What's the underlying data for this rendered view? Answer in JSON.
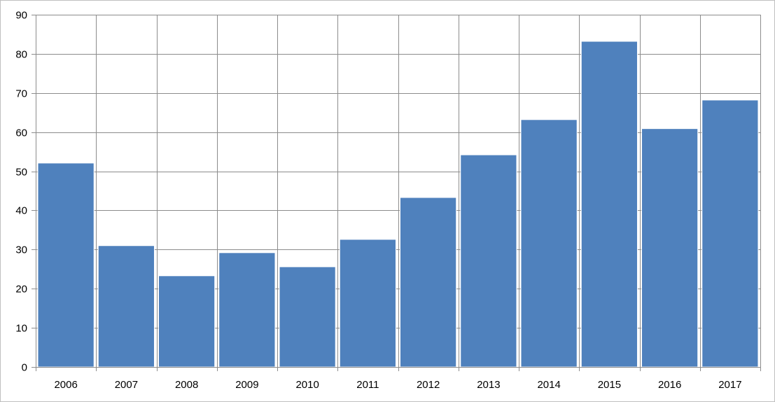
{
  "chart_data": {
    "type": "bar",
    "categories": [
      "2006",
      "2007",
      "2008",
      "2009",
      "2010",
      "2011",
      "2012",
      "2013",
      "2014",
      "2015",
      "2016",
      "2017"
    ],
    "values": [
      52.1,
      31.0,
      23.3,
      29.2,
      25.6,
      32.6,
      43.3,
      54.2,
      63.2,
      83.2,
      60.9,
      68.2
    ],
    "title": "",
    "xlabel": "",
    "ylabel": "",
    "ylim": [
      0,
      90
    ],
    "yticks": [
      0,
      10,
      20,
      30,
      40,
      50,
      60,
      70,
      80,
      90
    ],
    "grid": true,
    "legend": "none",
    "colors": {
      "bar": "#4f81bd",
      "grid": "#8c8c8c",
      "axis": "#8c8c8c",
      "background": "#ffffff"
    }
  }
}
